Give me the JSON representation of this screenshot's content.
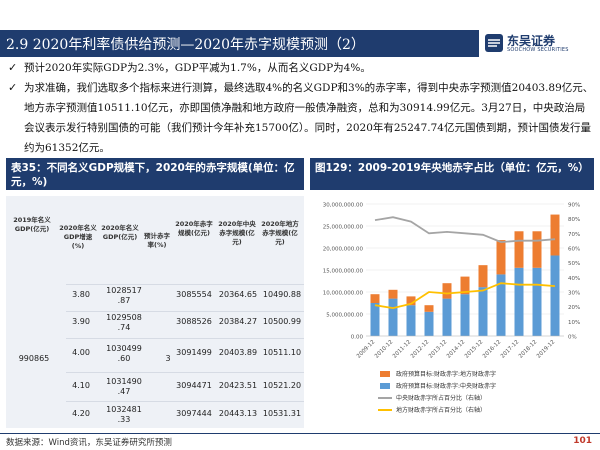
{
  "header": {
    "title": "2.9 2020年利率债供给预测—2020年赤字规模预测（2）",
    "logo_cn": "东吴证券",
    "logo_en": "SOOCHOW SECURITIES"
  },
  "bullets": [
    "预计2020年实际GDP为2.3%，GDP平减为1.7%，从而名义GDP为4%。",
    "为求准确，我们选取多个指标来进行测算，最终选取4%的名义GDP和3%的赤字率，得到中央赤字预测值20403.89亿元、地方赤字预测值10511.10亿元，亦即国债净融和地方政府一般债净融资，总和为30914.99亿元。3月27日，中央政治局会议表示发行特别国债的可能（我们预计今年补充15700亿）。同时，2020年有25247.74亿元国债到期，预计国债发行量约为61352亿元。"
  ],
  "table_panel": {
    "title": "表35：不同名义GDP规模下，2020年的赤字规模(单位：亿元，%)",
    "columns": [
      "2019年名义GDP(亿元)",
      "2020年名义GDP增速(%)",
      "2020年名义GDP(亿元)",
      "预计赤字率(%)",
      "2020年赤字规模(亿元)",
      "2020年中央赤字规模(亿元)",
      "2020年地方赤字规模(亿元)"
    ],
    "gdp_2019": "990865",
    "deficit_rate": "3",
    "rows": [
      {
        "growth": "3.80",
        "gdp": [
          "1028517",
          ".87"
        ],
        "deficit": "3085554",
        "central": "20364.65",
        "local": "10490.88"
      },
      {
        "growth": "3.90",
        "gdp": [
          "1029508",
          ".74"
        ],
        "deficit": "3088526",
        "central": "20384.27",
        "local": "10500.99"
      },
      {
        "growth": "4.00",
        "gdp": [
          "1030499",
          ".60"
        ],
        "deficit": "3091499",
        "central": "20403.89",
        "local": "10511.10"
      },
      {
        "growth": "4.10",
        "gdp": [
          "1031490",
          ".47"
        ],
        "deficit": "3094471",
        "central": "20423.51",
        "local": "10521.20"
      },
      {
        "growth": "4.20",
        "gdp": [
          "1032481",
          ".33"
        ],
        "deficit": "3097444",
        "central": "20443.13",
        "local": "10531.31"
      }
    ]
  },
  "chart_panel": {
    "title": "图129：2009-2019年央地赤字占比（单位：亿元，%）"
  },
  "chart_data": {
    "type": "bar",
    "categories": [
      "2009-12",
      "2010-12",
      "2011-12",
      "2012-12",
      "2013-12",
      "2014-12",
      "2015-12",
      "2016-12",
      "2017-12",
      "2018-12",
      "2019-12"
    ],
    "series": [
      {
        "name": "政府预算目标:财政赤字:地方财政赤字",
        "type": "bar",
        "axis": "left",
        "color": "#ed7d31",
        "values": [
          2000000,
          2000000,
          2000000,
          1500000,
          3500000,
          4000000,
          5000000,
          7800000,
          8300000,
          8300000,
          9300000
        ]
      },
      {
        "name": "政府预算目标:财政赤字:中央财政赤字",
        "type": "bar",
        "axis": "left",
        "color": "#5b9bd5",
        "values": [
          7500000,
          8500000,
          7000000,
          5500000,
          8500000,
          9500000,
          11100000,
          14000000,
          15500000,
          15500000,
          18300000
        ]
      },
      {
        "name": "中央财政赤字所占百分比（右轴）",
        "type": "line",
        "axis": "right",
        "color": "#a5a5a5",
        "values": [
          79,
          81,
          78,
          70,
          71,
          70,
          69,
          64,
          65,
          65,
          66
        ]
      },
      {
        "name": "地方财政赤字所占百分比（右轴）",
        "type": "line",
        "axis": "right",
        "color": "#ffc000",
        "values": [
          21,
          19,
          22,
          30,
          29,
          30,
          31,
          36,
          35,
          35,
          34
        ]
      }
    ],
    "yleft_ticks": [
      "0.00",
      "5,000,000.00",
      "10,000,000.00",
      "15,000,000.00",
      "20,000,000.00",
      "25,000,000.00",
      "30,000,000.00"
    ],
    "yleft_lim": [
      0,
      30000000
    ],
    "yright_ticks": [
      "0%",
      "10%",
      "20%",
      "30%",
      "40%",
      "50%",
      "60%",
      "70%",
      "80%",
      "90%"
    ],
    "yright_lim": [
      0,
      90
    ],
    "legend_position": "bottom"
  },
  "footer": {
    "source": "数据来源：Wind资讯，东吴证券研究所预测",
    "page": "101"
  }
}
